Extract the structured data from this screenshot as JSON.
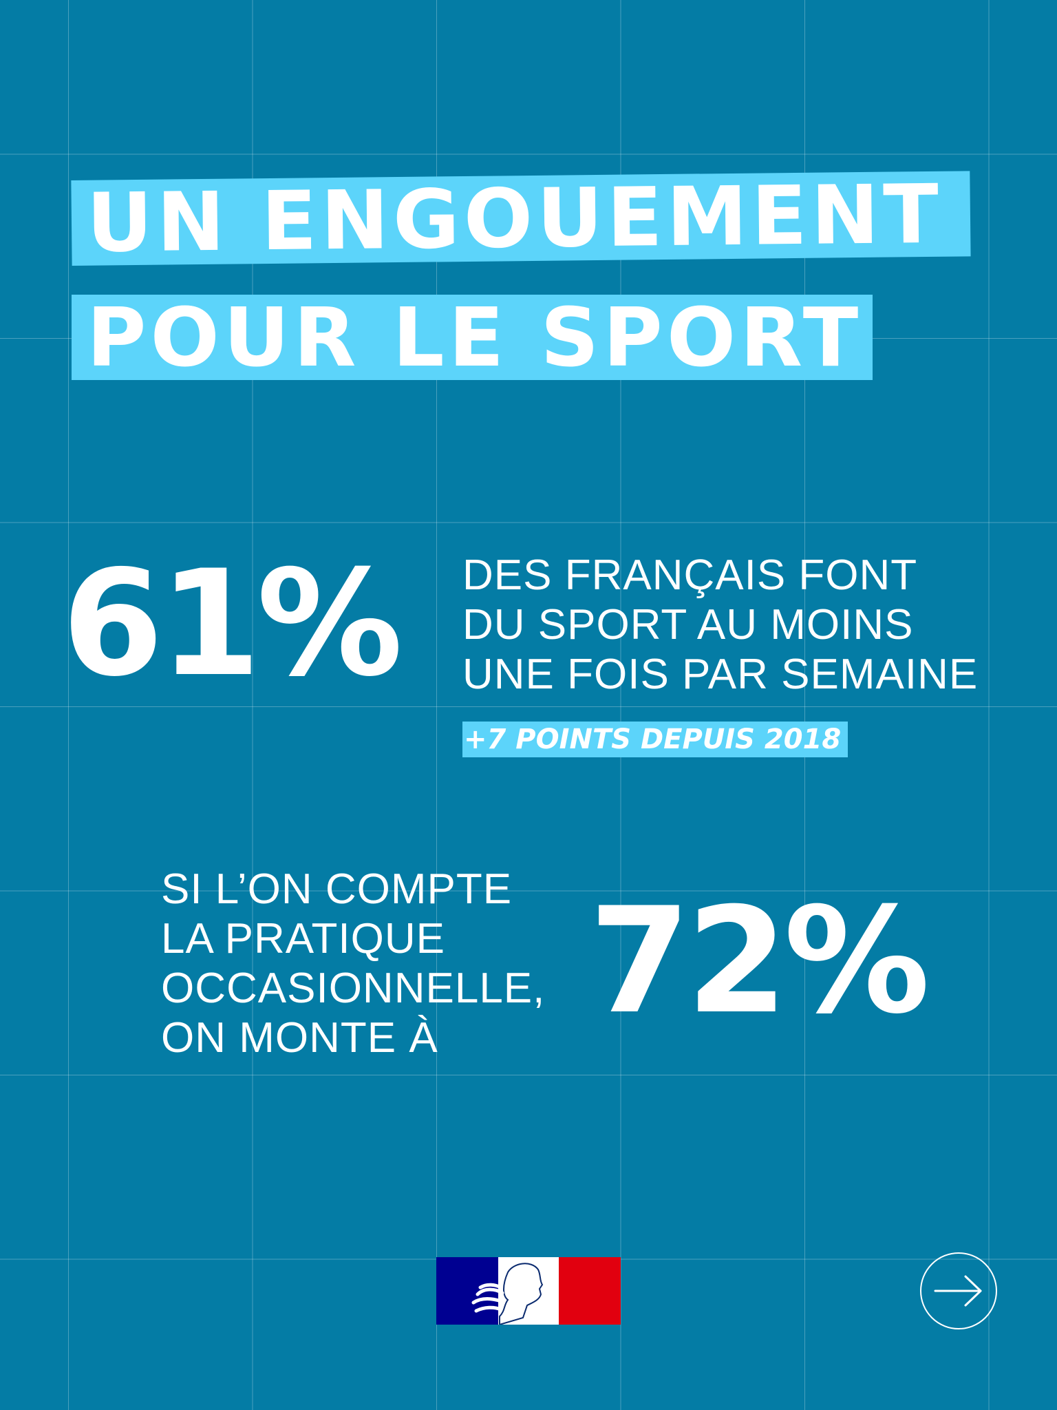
{
  "title": {
    "line1": "UN ENGOUEMENT",
    "line2": "POUR LE SPORT"
  },
  "stat1": {
    "value": "61%",
    "desc": [
      "DES FRANÇAIS FONT",
      "DU SPORT AU MOINS",
      "UNE FOIS PAR SEMAINE"
    ],
    "note": "+7 POINTS DEPUIS 2018"
  },
  "stat2": {
    "desc": [
      "SI L’ON COMPTE",
      "LA PRATIQUE",
      "OCCASIONNELLE,",
      "ON MONTE À"
    ],
    "value": "72%"
  },
  "footer": {
    "logo_icon": "marianne-flag-logo",
    "next_icon": "arrow-right-icon"
  },
  "colors": {
    "background": "#047ca5",
    "highlight": "#5cd4fa",
    "flag_blue": "#000091",
    "flag_red": "#e1000f"
  }
}
